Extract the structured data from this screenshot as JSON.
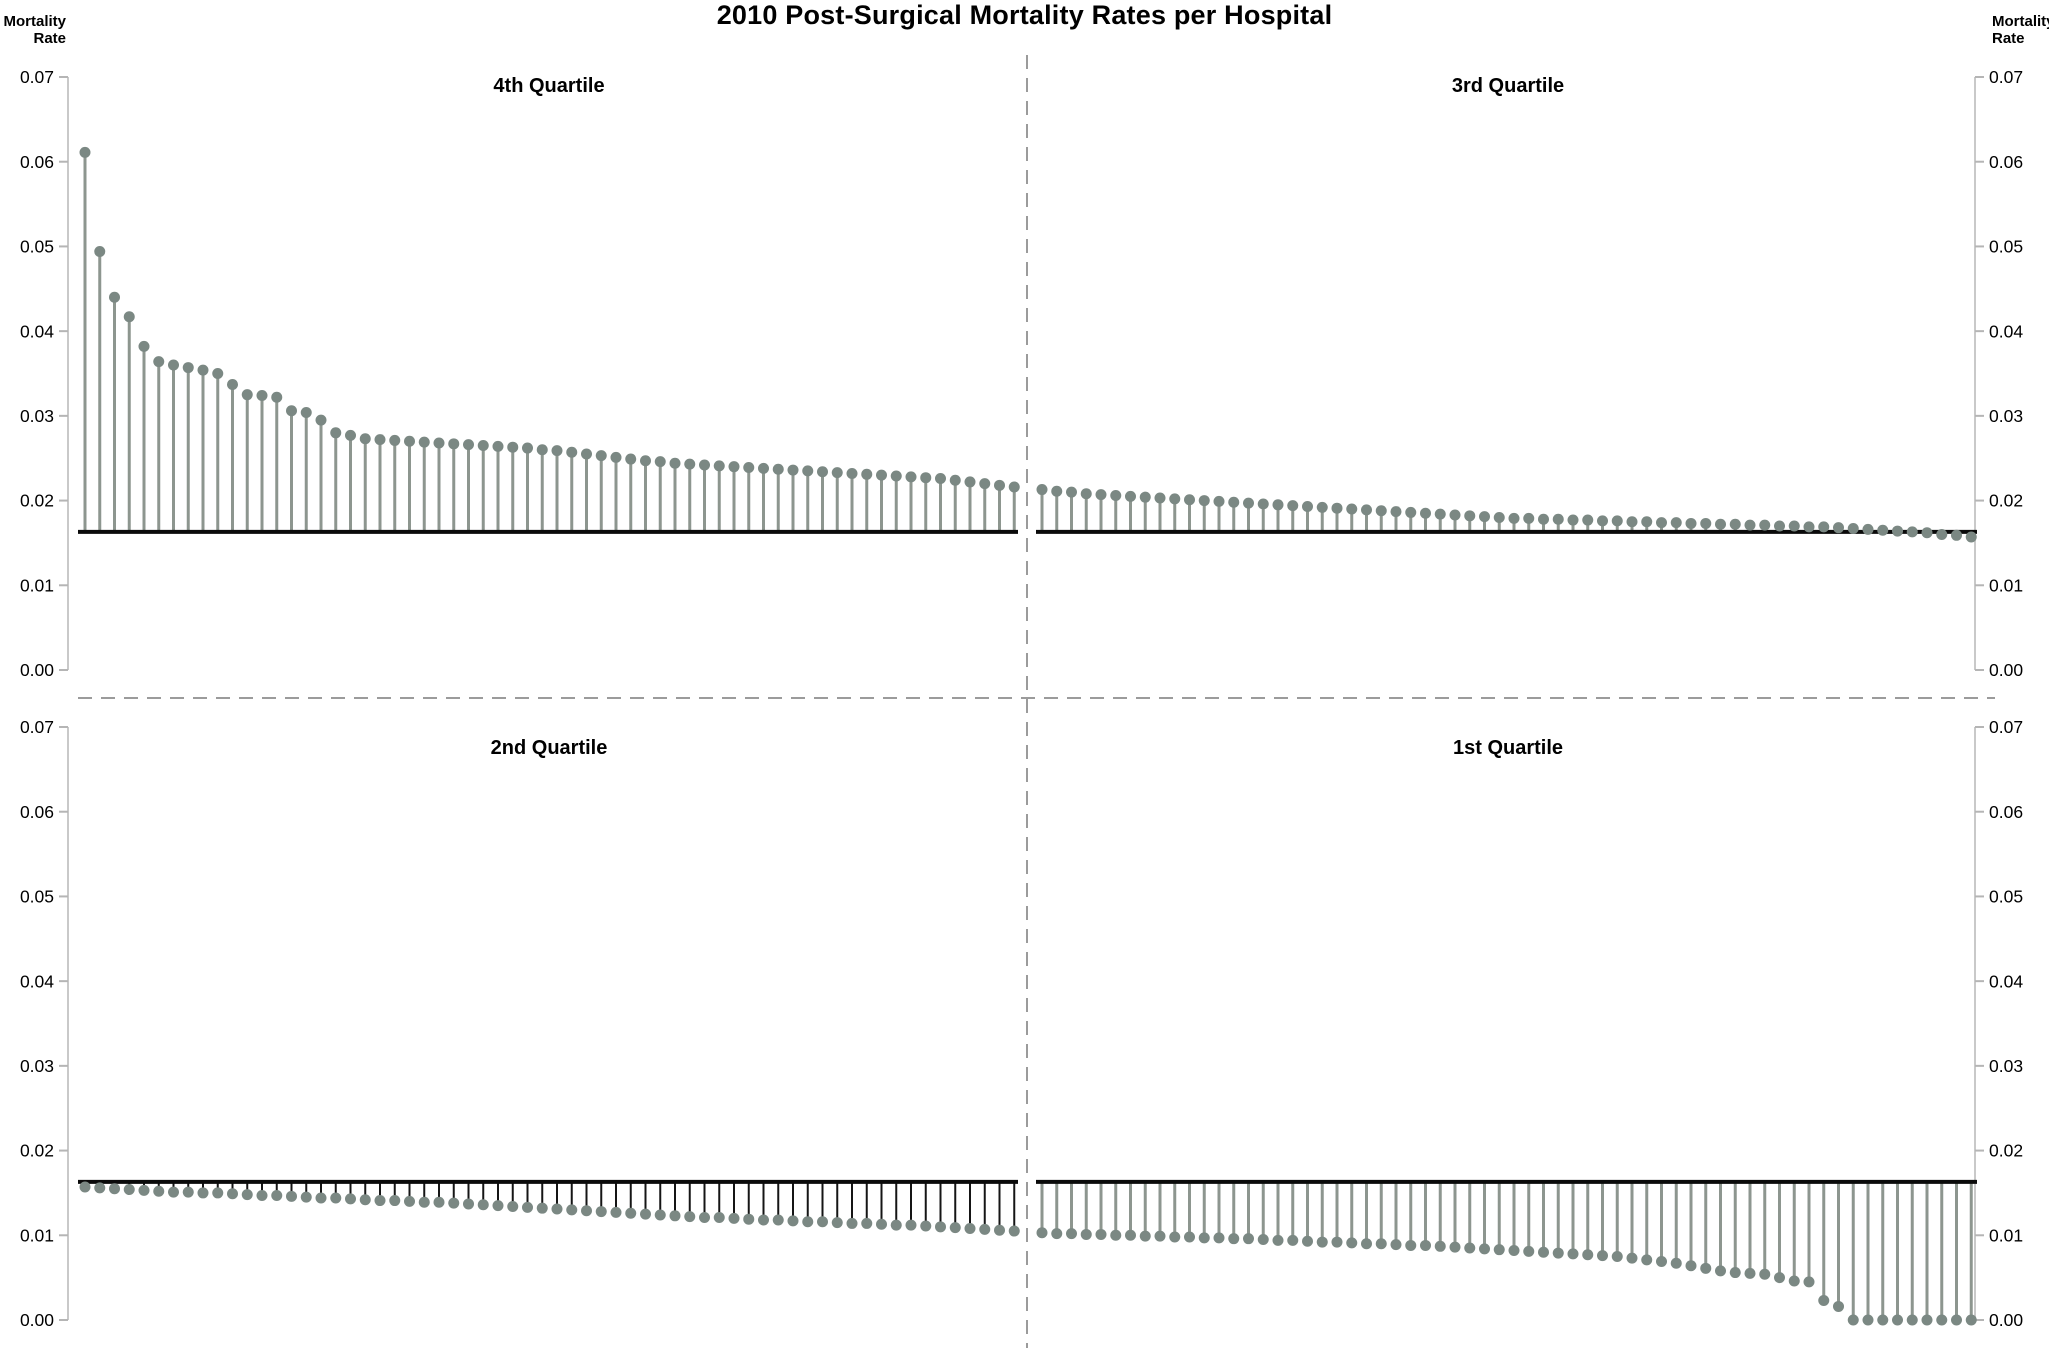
{
  "title": "2010 Post-Surgical Mortality Rates per Hospital",
  "axis": {
    "label": "Mortality\nRate",
    "ticks": [
      "0.00",
      "0.01",
      "0.02",
      "0.03",
      "0.04",
      "0.05",
      "0.06",
      "0.07"
    ]
  },
  "colors": {
    "dot": "#7b8883",
    "stem_gray": "#8d968f",
    "stem_black": "#151515",
    "baseline": "#0a0a0a",
    "axis_line": "#c9c9c9",
    "tick_mark": "#b5b5b5",
    "divider": "#9b9b9b"
  },
  "chart_data": {
    "type": "lollipop",
    "title": "2010 Post-Surgical Mortality Rates per Hospital",
    "ylabel": "Mortality Rate",
    "ylim": [
      0,
      0.07
    ],
    "baseline": 0.0163,
    "legend": "none",
    "grid": false,
    "panels": [
      {
        "title": "4th Quartile",
        "position": "top-left",
        "stem_color": "stem_gray",
        "values": [
          0.0611,
          0.0494,
          0.044,
          0.0417,
          0.0382,
          0.0364,
          0.036,
          0.0357,
          0.0354,
          0.035,
          0.0337,
          0.0325,
          0.0324,
          0.0322,
          0.0306,
          0.0304,
          0.0295,
          0.028,
          0.0277,
          0.0273,
          0.0272,
          0.0271,
          0.027,
          0.0269,
          0.0268,
          0.0267,
          0.0266,
          0.0265,
          0.0264,
          0.0263,
          0.0262,
          0.026,
          0.0259,
          0.0257,
          0.0255,
          0.0253,
          0.0251,
          0.0249,
          0.0247,
          0.0246,
          0.0244,
          0.0243,
          0.0242,
          0.0241,
          0.024,
          0.0239,
          0.0238,
          0.0237,
          0.0236,
          0.0235,
          0.0234,
          0.0233,
          0.0232,
          0.0231,
          0.023,
          0.0229,
          0.0228,
          0.0227,
          0.0226,
          0.0224,
          0.0222,
          0.022,
          0.0218,
          0.0216
        ]
      },
      {
        "title": "3rd Quartile",
        "position": "top-right",
        "stem_color": "stem_gray",
        "values": [
          0.0213,
          0.0211,
          0.021,
          0.0208,
          0.0207,
          0.0206,
          0.0205,
          0.0204,
          0.0203,
          0.0202,
          0.0201,
          0.02,
          0.0199,
          0.0198,
          0.0197,
          0.0196,
          0.0195,
          0.0194,
          0.0193,
          0.0192,
          0.0191,
          0.019,
          0.0189,
          0.0188,
          0.0187,
          0.0186,
          0.0185,
          0.0184,
          0.0183,
          0.0182,
          0.0181,
          0.018,
          0.0179,
          0.0179,
          0.0178,
          0.0178,
          0.0177,
          0.0177,
          0.0176,
          0.0176,
          0.0175,
          0.0175,
          0.0174,
          0.0174,
          0.0173,
          0.0173,
          0.0172,
          0.0172,
          0.0171,
          0.0171,
          0.017,
          0.017,
          0.0169,
          0.0169,
          0.0168,
          0.0167,
          0.0166,
          0.0165,
          0.0164,
          0.0163,
          0.0162,
          0.016,
          0.0159,
          0.0157
        ]
      },
      {
        "title": "2nd Quartile",
        "position": "bottom-left",
        "stem_color": "stem_black",
        "values": [
          0.0157,
          0.0156,
          0.0155,
          0.0154,
          0.0153,
          0.0152,
          0.0151,
          0.0151,
          0.015,
          0.015,
          0.0149,
          0.0148,
          0.0147,
          0.0147,
          0.0146,
          0.0145,
          0.0144,
          0.0144,
          0.0143,
          0.0142,
          0.0141,
          0.0141,
          0.014,
          0.0139,
          0.0139,
          0.0138,
          0.0137,
          0.0136,
          0.0135,
          0.0134,
          0.0133,
          0.0132,
          0.0131,
          0.013,
          0.0129,
          0.0128,
          0.0127,
          0.0126,
          0.0125,
          0.0124,
          0.0123,
          0.0122,
          0.0121,
          0.0121,
          0.012,
          0.0119,
          0.0118,
          0.0118,
          0.0117,
          0.0116,
          0.0116,
          0.0115,
          0.0114,
          0.0114,
          0.0113,
          0.0112,
          0.0112,
          0.0111,
          0.011,
          0.0109,
          0.0108,
          0.0107,
          0.0106,
          0.0105
        ]
      },
      {
        "title": "1st Quartile",
        "position": "bottom-right",
        "stem_color": "stem_gray",
        "values": [
          0.0103,
          0.0102,
          0.0102,
          0.0101,
          0.0101,
          0.01,
          0.01,
          0.0099,
          0.0099,
          0.0098,
          0.0098,
          0.0097,
          0.0097,
          0.0096,
          0.0096,
          0.0095,
          0.0094,
          0.0094,
          0.0093,
          0.0092,
          0.0092,
          0.0091,
          0.009,
          0.009,
          0.0089,
          0.0088,
          0.0088,
          0.0087,
          0.0086,
          0.0085,
          0.0084,
          0.0083,
          0.0082,
          0.0081,
          0.008,
          0.0079,
          0.0078,
          0.0077,
          0.0076,
          0.0075,
          0.0073,
          0.0071,
          0.0069,
          0.0067,
          0.0064,
          0.0061,
          0.0058,
          0.0056,
          0.0055,
          0.0054,
          0.005,
          0.0046,
          0.0045,
          0.0023,
          0.0016,
          0.0,
          0.0,
          0.0,
          0.0,
          0.0,
          0.0,
          0.0,
          0.0,
          0.0
        ]
      }
    ]
  }
}
